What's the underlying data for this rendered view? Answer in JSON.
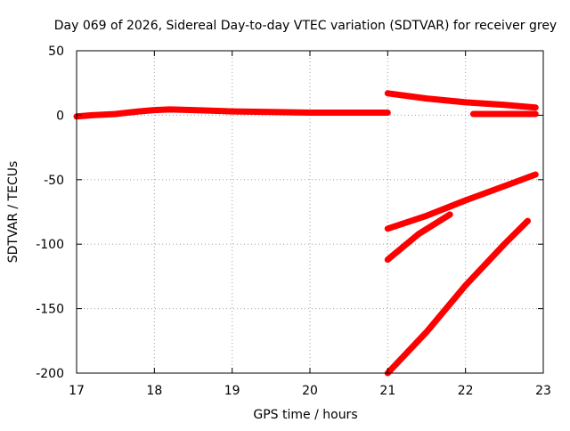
{
  "chart_data": {
    "type": "line",
    "title": "Day 069 of 2026, Sidereal Day-to-day VTEC variation (SDTVAR) for receiver grey",
    "xlabel": "GPS time / hours",
    "ylabel": "SDTVAR / TECUs",
    "xlim": [
      17,
      23
    ],
    "ylim": [
      -200,
      50
    ],
    "xticks": [
      17,
      18,
      19,
      20,
      21,
      22,
      23
    ],
    "yticks": [
      -200,
      -150,
      -100,
      -50,
      0,
      50
    ],
    "xtick_labels": [
      "17",
      "18",
      "19",
      "20",
      "21",
      "22",
      "23"
    ],
    "ytick_labels": [
      "-200",
      "-150",
      "-100",
      "-50",
      "0",
      "50"
    ],
    "grid": true,
    "legend": "none",
    "line_color": "#ff0000",
    "series": [
      {
        "x": [
          17.0,
          17.2,
          17.5,
          17.8,
          18.0,
          18.2,
          18.5,
          19.0,
          19.5,
          20.0,
          20.5,
          21.0
        ],
        "values": [
          -1,
          0,
          1,
          3,
          4,
          4.5,
          4,
          3,
          2.5,
          2,
          2,
          2
        ]
      },
      {
        "x": [
          21.0,
          21.5,
          22.0,
          22.5,
          22.9
        ],
        "values": [
          17,
          13,
          10,
          8,
          6
        ]
      },
      {
        "x": [
          22.1,
          22.5,
          22.9
        ],
        "values": [
          1,
          1,
          1
        ]
      },
      {
        "x": [
          21.0,
          21.5,
          22.0,
          22.5,
          22.9
        ],
        "values": [
          -88,
          -78,
          -66,
          -55,
          -46
        ]
      },
      {
        "x": [
          21.0,
          21.4,
          21.8
        ],
        "values": [
          -112,
          -92,
          -77
        ]
      },
      {
        "x": [
          21.0,
          21.5,
          22.0,
          22.5,
          22.8
        ],
        "values": [
          -200,
          -168,
          -132,
          -100,
          -82
        ]
      }
    ]
  }
}
